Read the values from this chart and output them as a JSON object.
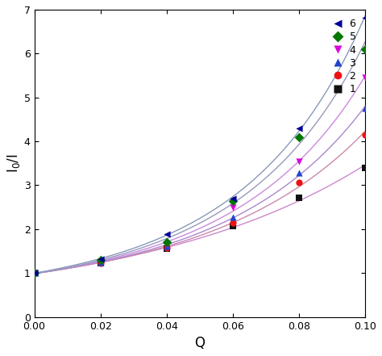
{
  "xlabel": "Q",
  "ylabel": "I$_0$/I",
  "xlim": [
    0.0,
    0.1
  ],
  "ylim": [
    0,
    7
  ],
  "yticks": [
    0,
    1,
    2,
    3,
    4,
    5,
    6,
    7
  ],
  "xticks": [
    0.0,
    0.02,
    0.04,
    0.06,
    0.08,
    0.1
  ],
  "series": [
    {
      "label": "1",
      "marker_color": "#111111",
      "line_color": "#cc88cc",
      "marker": "s",
      "x": [
        0.0,
        0.02,
        0.04,
        0.06,
        0.08,
        0.1
      ],
      "y": [
        1.0,
        1.22,
        1.55,
        2.07,
        2.72,
        3.4
      ]
    },
    {
      "label": "2",
      "marker_color": "#ee1111",
      "line_color": "#cc88aa",
      "marker": "o",
      "x": [
        0.0,
        0.02,
        0.04,
        0.06,
        0.08,
        0.1
      ],
      "y": [
        1.0,
        1.23,
        1.58,
        2.15,
        3.07,
        4.15
      ]
    },
    {
      "label": "3",
      "marker_color": "#2244cc",
      "line_color": "#aa88cc",
      "marker": "^",
      "x": [
        0.0,
        0.02,
        0.04,
        0.06,
        0.08,
        0.1
      ],
      "y": [
        1.0,
        1.25,
        1.62,
        2.27,
        3.28,
        4.75
      ]
    },
    {
      "label": "4",
      "marker_color": "#dd00dd",
      "line_color": "#cc88dd",
      "marker": "v",
      "x": [
        0.0,
        0.02,
        0.04,
        0.06,
        0.08,
        0.1
      ],
      "y": [
        1.0,
        1.27,
        1.65,
        2.5,
        3.55,
        5.45
      ]
    },
    {
      "label": "5",
      "marker_color": "#007700",
      "line_color": "#9999bb",
      "marker": "D",
      "x": [
        0.0,
        0.02,
        0.04,
        0.06,
        0.08,
        0.1
      ],
      "y": [
        1.0,
        1.29,
        1.7,
        2.65,
        4.1,
        6.1
      ]
    },
    {
      "label": "6",
      "marker_color": "#000099",
      "line_color": "#8899bb",
      "marker": "<",
      "x": [
        0.0,
        0.02,
        0.04,
        0.06,
        0.08,
        0.1
      ],
      "y": [
        1.0,
        1.32,
        1.88,
        2.7,
        4.3,
        6.82
      ]
    }
  ]
}
